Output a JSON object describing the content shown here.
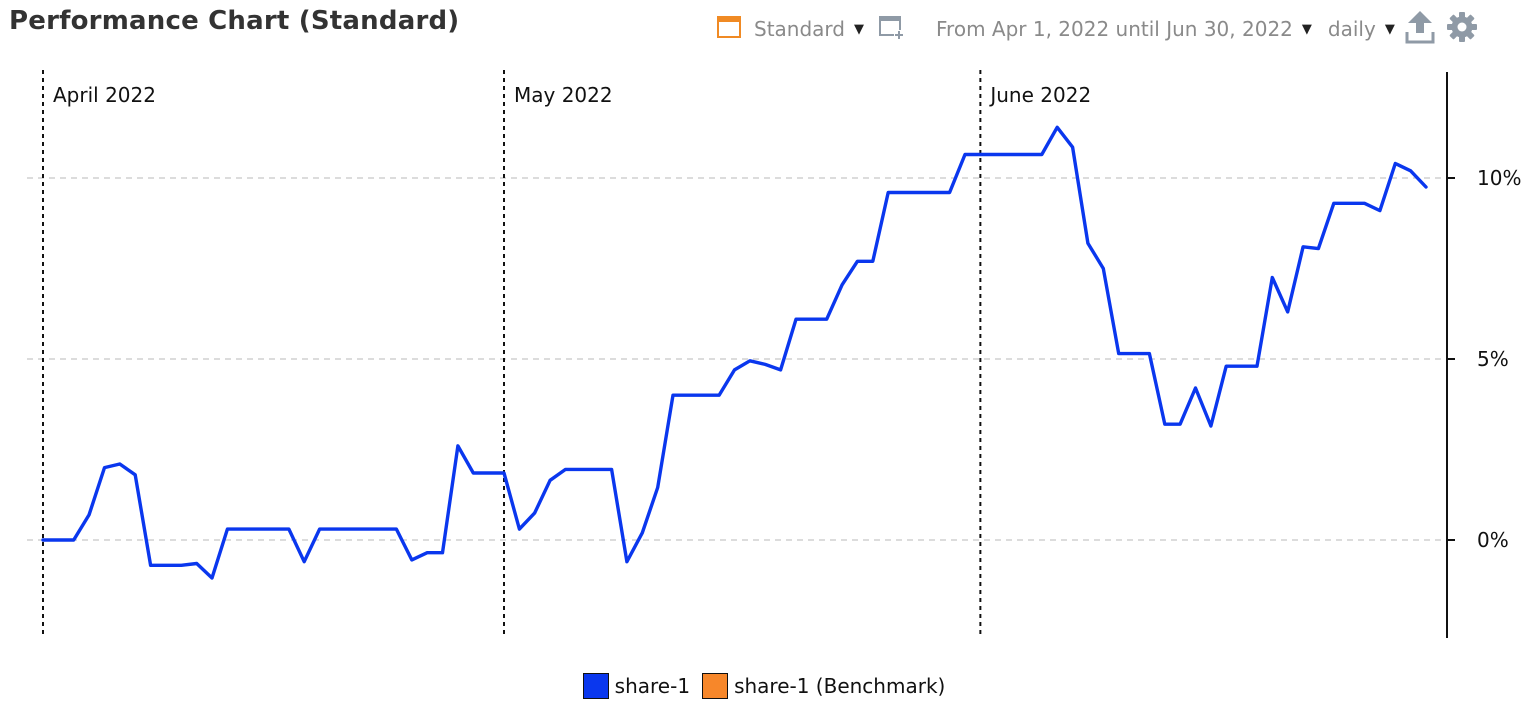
{
  "header": {
    "title": "Performance Chart (Standard)",
    "view_label": "Standard",
    "date_range_label": "From Apr 1, 2022 until Jun 30, 2022",
    "interval_label": "daily"
  },
  "icons": {
    "view": "calendar-icon",
    "add_chart": "add-window-icon",
    "export": "export-upload-icon",
    "settings": "gear-icon"
  },
  "colors": {
    "series": "#0a37ee",
    "benchmark": "#f7872a",
    "toolbar_icon": "#8f9aa6",
    "calendar_icon": "#f08a24"
  },
  "chart_data": {
    "type": "line",
    "x_unit": "date",
    "y_unit": "%",
    "xlim": [
      "2022-04-01",
      "2022-06-30"
    ],
    "ylim": [
      -2.7,
      12.8
    ],
    "yticks": [
      0,
      5,
      10
    ],
    "ytick_labels": [
      "0%",
      "5%",
      "10%"
    ],
    "y_axis_position": "right",
    "grid": "horizontal dashed",
    "legend_position": "bottom-center",
    "month_markers": [
      {
        "date": "2022-04-01",
        "label": "April 2022"
      },
      {
        "date": "2022-05-01",
        "label": "May 2022"
      },
      {
        "date": "2022-06-01",
        "label": "June 2022"
      }
    ],
    "series": [
      {
        "name": "share-1",
        "points": [
          [
            "2022-04-01",
            0.0
          ],
          [
            "2022-04-03",
            0.0
          ],
          [
            "2022-04-04",
            0.7
          ],
          [
            "2022-04-05",
            2.0
          ],
          [
            "2022-04-06",
            2.1
          ],
          [
            "2022-04-07",
            1.8
          ],
          [
            "2022-04-08",
            -0.7
          ],
          [
            "2022-04-10",
            -0.7
          ],
          [
            "2022-04-11",
            -0.65
          ],
          [
            "2022-04-12",
            -1.05
          ],
          [
            "2022-04-13",
            0.3
          ],
          [
            "2022-04-17",
            0.3
          ],
          [
            "2022-04-18",
            -0.6
          ],
          [
            "2022-04-19",
            0.3
          ],
          [
            "2022-04-24",
            0.3
          ],
          [
            "2022-04-25",
            -0.55
          ],
          [
            "2022-04-26",
            -0.35
          ],
          [
            "2022-04-27",
            -0.35
          ],
          [
            "2022-04-28",
            2.6
          ],
          [
            "2022-04-29",
            1.85
          ],
          [
            "2022-05-01",
            1.85
          ],
          [
            "2022-05-02",
            0.3
          ],
          [
            "2022-05-03",
            0.75
          ],
          [
            "2022-05-04",
            1.65
          ],
          [
            "2022-05-05",
            1.95
          ],
          [
            "2022-05-08",
            1.95
          ],
          [
            "2022-05-09",
            -0.6
          ],
          [
            "2022-05-10",
            0.2
          ],
          [
            "2022-05-11",
            1.45
          ],
          [
            "2022-05-12",
            4.0
          ],
          [
            "2022-05-15",
            4.0
          ],
          [
            "2022-05-16",
            4.7
          ],
          [
            "2022-05-17",
            4.95
          ],
          [
            "2022-05-18",
            4.85
          ],
          [
            "2022-05-19",
            4.7
          ],
          [
            "2022-05-20",
            6.1
          ],
          [
            "2022-05-22",
            6.1
          ],
          [
            "2022-05-23",
            7.05
          ],
          [
            "2022-05-24",
            7.7
          ],
          [
            "2022-05-25",
            7.7
          ],
          [
            "2022-05-26",
            9.6
          ],
          [
            "2022-05-30",
            9.6
          ],
          [
            "2022-05-31",
            10.65
          ],
          [
            "2022-06-05",
            10.65
          ],
          [
            "2022-06-06",
            11.4
          ],
          [
            "2022-06-07",
            10.85
          ],
          [
            "2022-06-08",
            8.2
          ],
          [
            "2022-06-09",
            7.5
          ],
          [
            "2022-06-10",
            5.15
          ],
          [
            "2022-06-12",
            5.15
          ],
          [
            "2022-06-13",
            3.2
          ],
          [
            "2022-06-14",
            3.2
          ],
          [
            "2022-06-15",
            4.2
          ],
          [
            "2022-06-16",
            3.15
          ],
          [
            "2022-06-17",
            4.8
          ],
          [
            "2022-06-19",
            4.8
          ],
          [
            "2022-06-20",
            7.25
          ],
          [
            "2022-06-21",
            6.3
          ],
          [
            "2022-06-22",
            8.1
          ],
          [
            "2022-06-23",
            8.05
          ],
          [
            "2022-06-24",
            9.3
          ],
          [
            "2022-06-26",
            9.3
          ],
          [
            "2022-06-27",
            9.1
          ],
          [
            "2022-06-28",
            10.4
          ],
          [
            "2022-06-29",
            10.2
          ],
          [
            "2022-06-30",
            9.75
          ]
        ]
      }
    ],
    "legend": [
      {
        "label": "share-1",
        "color": "#0a37ee"
      },
      {
        "label": "share-1 (Benchmark)",
        "color": "#f7872a"
      }
    ]
  }
}
